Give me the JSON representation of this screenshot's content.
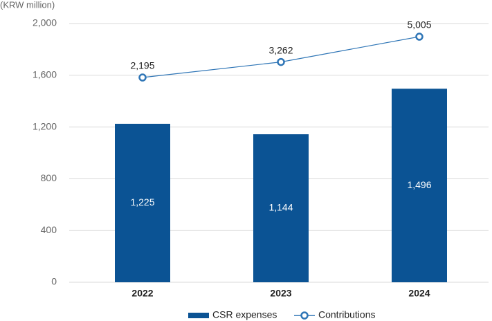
{
  "chart_data": {
    "type": "bar+line",
    "y_axis_label": "(KRW million)",
    "categories": [
      "2022",
      "2023",
      "2024"
    ],
    "series": [
      {
        "name": "CSR expenses",
        "type": "bar",
        "color": "#0b5394",
        "values": [
          1225,
          1144,
          1496
        ],
        "value_labels": [
          "1,225",
          "1,144",
          "1,496"
        ]
      },
      {
        "name": "Contributions",
        "type": "line",
        "axis": "y2",
        "color": "#2e75b6",
        "values": [
          2195,
          3262,
          5005
        ],
        "value_labels": [
          "2,195",
          "3,262",
          "5,005"
        ]
      }
    ],
    "ylim": [
      0,
      2000
    ],
    "yticks": [
      0,
      400,
      800,
      {
        "value": 1200,
        "label": "1,200"
      },
      {
        "value": 1600,
        "label": "1,600"
      },
      {
        "value": 2000,
        "label": "2,000"
      }
    ],
    "y2lim": [
      -11900,
      5910
    ],
    "grid": true,
    "legend": "bottom"
  }
}
